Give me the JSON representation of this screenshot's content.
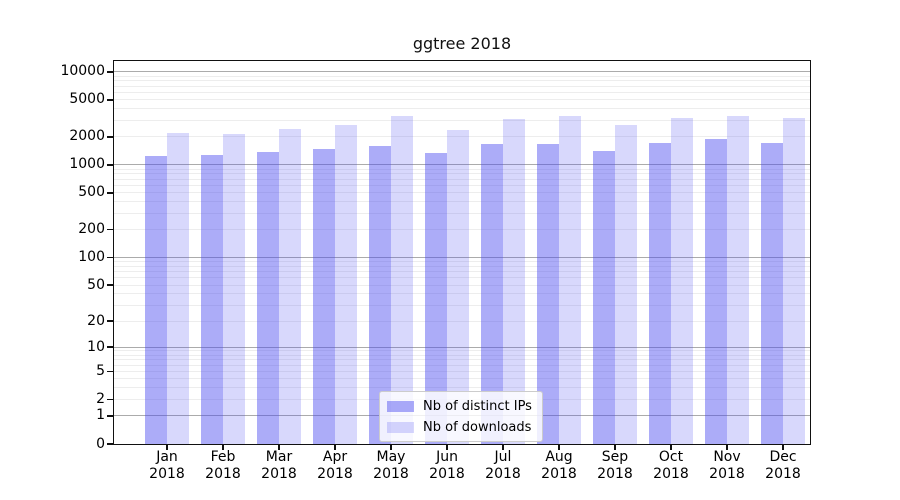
{
  "chart_data": {
    "type": "bar",
    "title": "ggtree 2018",
    "x_categories": [
      {
        "month": "Jan",
        "year": "2018"
      },
      {
        "month": "Feb",
        "year": "2018"
      },
      {
        "month": "Mar",
        "year": "2018"
      },
      {
        "month": "Apr",
        "year": "2018"
      },
      {
        "month": "May",
        "year": "2018"
      },
      {
        "month": "Jun",
        "year": "2018"
      },
      {
        "month": "Jul",
        "year": "2018"
      },
      {
        "month": "Aug",
        "year": "2018"
      },
      {
        "month": "Sep",
        "year": "2018"
      },
      {
        "month": "Oct",
        "year": "2018"
      },
      {
        "month": "Nov",
        "year": "2018"
      },
      {
        "month": "Dec",
        "year": "2018"
      }
    ],
    "series": [
      {
        "name": "Nb of distinct IPs",
        "color": "rgba(70,70,240,0.45)",
        "values": [
          1245,
          1270,
          1380,
          1500,
          1600,
          1350,
          1670,
          1690,
          1410,
          1710,
          1920,
          1710
        ]
      },
      {
        "name": "Nb of downloads",
        "color": "rgba(70,70,240,0.21)",
        "values": [
          2220,
          2170,
          2450,
          2690,
          3380,
          2370,
          3140,
          3330,
          2690,
          3220,
          3380,
          3190
        ]
      }
    ],
    "y_axis": {
      "scale": "log1p",
      "tick_labels": [
        0,
        1,
        2,
        5,
        10,
        20,
        50,
        100,
        200,
        500,
        1000,
        2000,
        5000,
        10000
      ],
      "major_gridlines": [
        1,
        10,
        100,
        1000,
        10000
      ],
      "minor_gridline_subs": [
        2,
        3,
        4,
        5,
        6,
        7,
        8,
        9
      ]
    },
    "grid": {
      "major_color": "#ababab",
      "minor_color": "#ededed"
    },
    "legend": {
      "position": "lower-center",
      "background": "rgba(255,255,255,0.82)",
      "border_color": "#cccccc"
    }
  }
}
